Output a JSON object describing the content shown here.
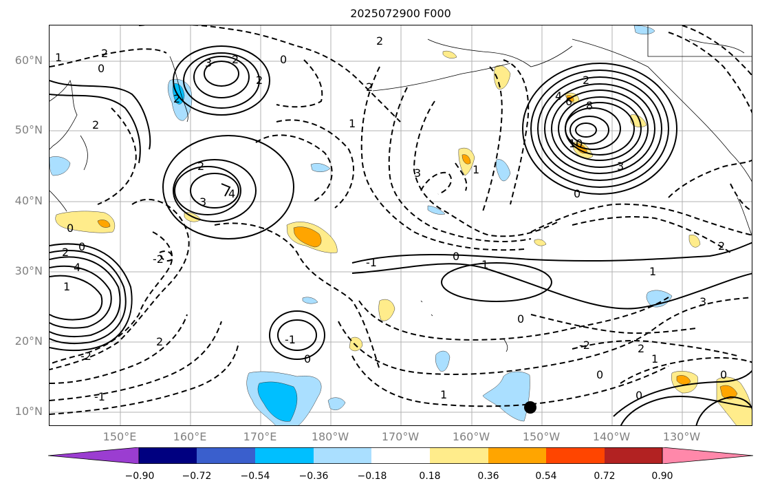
{
  "title": "2025072900 F000",
  "lat_labels": [
    "60°N",
    "50°N",
    "40°N",
    "30°N",
    "20°N",
    "10°N"
  ],
  "lon_labels": [
    "150°E",
    "160°E",
    "170°E",
    "180°W",
    "170°W",
    "160°W",
    "150°W",
    "140°W",
    "130°W"
  ],
  "colorbar": {
    "ticks": [
      "−0.90",
      "−0.72",
      "−0.54",
      "−0.36",
      "−0.18",
      "0.18",
      "0.36",
      "0.54",
      "0.72",
      "0.90"
    ],
    "colors": [
      "#9b3dd1",
      "#000080",
      "#3a5fcd",
      "#00bfff",
      "#aadfff",
      "#ffffff",
      "#ffec8b",
      "#ffa500",
      "#ff4500",
      "#b22222",
      "#ff88aa"
    ]
  },
  "contour_labels": [
    "2",
    "1",
    "0",
    "3",
    "2",
    "2",
    "0",
    "2",
    "1",
    "2",
    "4",
    "6",
    "8",
    "10",
    "3",
    "2",
    "0",
    "2",
    "3",
    "4",
    "3",
    "1",
    "-1",
    "-2",
    "0",
    "4",
    "2",
    "0",
    "1",
    "0",
    "1",
    "1",
    "2",
    "3",
    "-1",
    "0",
    "2",
    "0",
    "-2",
    "2",
    "1",
    "0",
    "0",
    "1",
    "0",
    "-2",
    "2",
    "-1",
    "2"
  ],
  "marker": {
    "name": "black-dot",
    "lon": "150.5°W",
    "lat": "10.7°N"
  }
}
